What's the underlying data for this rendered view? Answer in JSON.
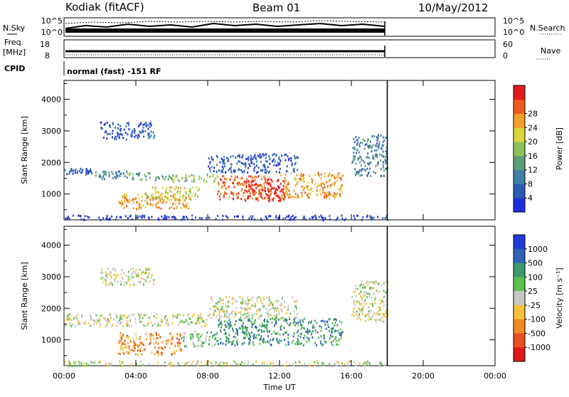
{
  "header": {
    "station": "Kodiak (fitACF)",
    "beam": "Beam 01",
    "date": "10/May/2012"
  },
  "mini_panels": {
    "nsky_label": "N.Sky",
    "nsearch_label": "N.Search",
    "nsky_ticks": [
      "10^5",
      "10^0"
    ],
    "nsearch_ticks": [
      "10^5",
      "10^0"
    ],
    "freq_label_1": "Freq.",
    "freq_label_2": "[MHz]",
    "freq_ticks": [
      "18",
      "8"
    ],
    "nave_label": "Nave",
    "nave_ticks": [
      "60",
      "0"
    ],
    "cpid_label": "CPID",
    "cpid_text": "normal (fast) -151 RF"
  },
  "chart_data": [
    {
      "type": "heatmap",
      "title": "",
      "xlabel": "Time UT",
      "ylabel": "Slant Range [km]",
      "x_ticks": [
        "00:00",
        "04:00",
        "08:00",
        "12:00",
        "16:00",
        "20:00",
        "00:00"
      ],
      "xlim_hours": [
        0,
        24
      ],
      "ylim": [
        180,
        4600
      ],
      "y_ticks": [
        1000,
        2000,
        3000,
        4000
      ],
      "data_end_hour": 18,
      "colorbar": {
        "label": "Power [dB]",
        "ticks": [
          "4",
          "8",
          "12",
          "16",
          "20",
          "24",
          "28"
        ],
        "colors": [
          "#1f2fe0",
          "#2e5bb5",
          "#3f7fa8",
          "#5d9e7a",
          "#8cc35a",
          "#d8d83c",
          "#f0a02a",
          "#ef5a1e",
          "#e51b1b"
        ]
      },
      "regions": [
        {
          "t": [
            0.0,
            1.5
          ],
          "r": [
            1650,
            1850
          ],
          "level": 1
        },
        {
          "t": [
            1.5,
            3.5
          ],
          "r": [
            1500,
            1750
          ],
          "level": 2
        },
        {
          "t": [
            3.5,
            6.0
          ],
          "r": [
            1450,
            1700
          ],
          "level": 3
        },
        {
          "t": [
            6.0,
            8.5
          ],
          "r": [
            1400,
            1650
          ],
          "level": 4
        },
        {
          "t": [
            2.0,
            5.0
          ],
          "r": [
            2750,
            3300
          ],
          "level": 1
        },
        {
          "t": [
            3.0,
            7.0
          ],
          "r": [
            550,
            1050
          ],
          "level": 6
        },
        {
          "t": [
            4.5,
            7.5
          ],
          "r": [
            850,
            1250
          ],
          "level": 5
        },
        {
          "t": [
            8.5,
            11.5
          ],
          "r": [
            850,
            1600
          ],
          "level": 7
        },
        {
          "t": [
            10.0,
            12.5
          ],
          "r": [
            800,
            1500
          ],
          "level": 8
        },
        {
          "t": [
            12.0,
            15.5
          ],
          "r": [
            900,
            1700
          ],
          "level": 6
        },
        {
          "t": [
            8.0,
            13.0
          ],
          "r": [
            1700,
            2300
          ],
          "level": 1
        },
        {
          "t": [
            16.0,
            18.0
          ],
          "r": [
            1600,
            2900
          ],
          "level": 2
        },
        {
          "t": [
            0.0,
            18.0
          ],
          "r": [
            200,
            350
          ],
          "level": 0
        }
      ]
    },
    {
      "type": "heatmap",
      "title": "",
      "xlabel": "Time UT",
      "ylabel": "Slant Range [km]",
      "x_ticks": [
        "00:00",
        "04:00",
        "08:00",
        "12:00",
        "16:00",
        "20:00",
        "00:00"
      ],
      "xlim_hours": [
        0,
        24
      ],
      "ylim": [
        180,
        4600
      ],
      "y_ticks": [
        1000,
        2000,
        3000,
        4000
      ],
      "data_end_hour": 18,
      "colorbar": {
        "label": "Velocity [m s⁻¹]",
        "ticks": [
          "1000",
          "500",
          "100",
          "25",
          "-25",
          "-100",
          "-500",
          "-1000"
        ],
        "colors": [
          "#1f3ad6",
          "#2e63b5",
          "#3c9a6e",
          "#5bc24b",
          "#c8c8c2",
          "#f6c23a",
          "#f08a22",
          "#e8501e",
          "#e01818"
        ]
      },
      "regions": [
        {
          "t": [
            0.0,
            8.0
          ],
          "r": [
            1450,
            1850
          ],
          "level": 4
        },
        {
          "t": [
            2.0,
            5.0
          ],
          "r": [
            2750,
            3300
          ],
          "level": 4
        },
        {
          "t": [
            3.0,
            6.5
          ],
          "r": [
            550,
            1250
          ],
          "level": 6
        },
        {
          "t": [
            6.5,
            8.5
          ],
          "r": [
            800,
            1300
          ],
          "level": 3
        },
        {
          "t": [
            8.5,
            15.5
          ],
          "r": [
            850,
            1700
          ],
          "level": 2
        },
        {
          "t": [
            8.0,
            13.0
          ],
          "r": [
            1700,
            2400
          ],
          "level": 4
        },
        {
          "t": [
            16.0,
            18.0
          ],
          "r": [
            1600,
            2900
          ],
          "level": 4
        },
        {
          "t": [
            0.0,
            18.0
          ],
          "r": [
            200,
            350
          ],
          "level": 4
        }
      ]
    }
  ]
}
